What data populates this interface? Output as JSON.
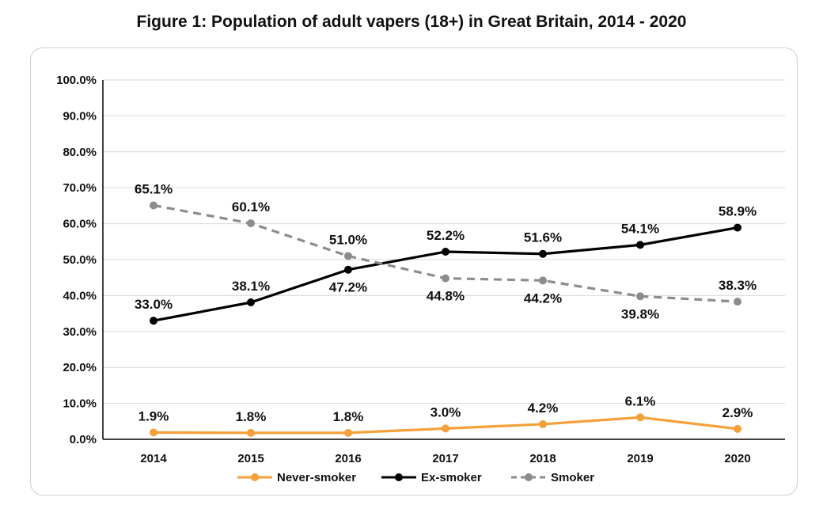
{
  "chart_data": {
    "type": "line",
    "title": "Figure 1: Population of adult vapers (18+) in Great Britain, 2014 - 2020",
    "categories": [
      "2014",
      "2015",
      "2016",
      "2017",
      "2018",
      "2019",
      "2020"
    ],
    "ylim": [
      0,
      100
    ],
    "yticks": [
      "0.0%",
      "10.0%",
      "20.0%",
      "30.0%",
      "40.0%",
      "50.0%",
      "60.0%",
      "70.0%",
      "80.0%",
      "90.0%",
      "100.0%"
    ],
    "grid": true,
    "legend_position": "bottom",
    "series": [
      {
        "name": "Never-smoker",
        "color": "#f5a03a",
        "style": "solid",
        "values": [
          1.9,
          1.8,
          1.8,
          3.0,
          4.2,
          6.1,
          2.9
        ],
        "labels": [
          "1.9%",
          "1.8%",
          "1.8%",
          "3.0%",
          "4.2%",
          "6.1%",
          "2.9%"
        ]
      },
      {
        "name": "Ex-smoker",
        "color": "#000000",
        "style": "solid",
        "values": [
          33.0,
          38.1,
          47.2,
          52.2,
          51.6,
          54.1,
          58.9
        ],
        "labels": [
          "33.0%",
          "38.1%",
          "47.2%",
          "52.2%",
          "51.6%",
          "54.1%",
          "58.9%"
        ]
      },
      {
        "name": "Smoker",
        "color": "#8c8c8c",
        "style": "dashed",
        "values": [
          65.1,
          60.1,
          51.0,
          44.8,
          44.2,
          39.8,
          38.3
        ],
        "labels": [
          "65.1%",
          "60.1%",
          "51.0%",
          "44.8%",
          "44.2%",
          "39.8%",
          "38.3%"
        ]
      }
    ]
  }
}
